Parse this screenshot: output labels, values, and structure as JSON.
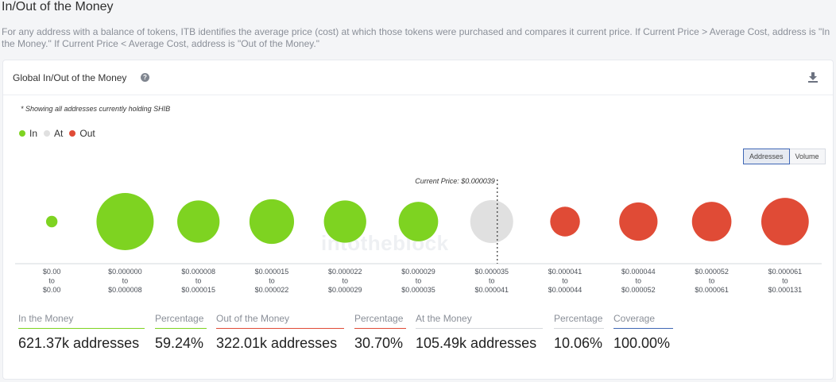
{
  "page": {
    "title": "In/Out of the Money",
    "description": "For any address with a balance of tokens, ITB identifies the average price (cost) at which those tokens were purchased and compares it current price. If Current Price > Average Cost, address is \"In the Money.\" If Current Price < Average Cost, address is \"Out of the Money.\""
  },
  "card": {
    "title": "Global In/Out of the Money",
    "help_icon": "?",
    "note": "* Showing all addresses currently holding SHIB",
    "watermark": "intotheblock"
  },
  "legend": [
    {
      "label": "In",
      "color": "#7ed321"
    },
    {
      "label": "At",
      "color": "#e0e0e0"
    },
    {
      "label": "Out",
      "color": "#e04b36"
    }
  ],
  "toggle": {
    "addresses": "Addresses",
    "volume": "Volume",
    "selected": "Addresses"
  },
  "chart_data": {
    "type": "bubble",
    "current_price_label": "Current Price: $0.000039",
    "current_price_bucket_index": 6,
    "buckets": [
      {
        "range_from": "$0.00",
        "range_to": "$0.00",
        "status": "in",
        "relative_size": 0.2
      },
      {
        "range_from": "$0.000000",
        "range_to": "$0.000008",
        "status": "in",
        "relative_size": 1.0
      },
      {
        "range_from": "$0.000008",
        "range_to": "$0.000015",
        "status": "in",
        "relative_size": 0.74
      },
      {
        "range_from": "$0.000015",
        "range_to": "$0.000022",
        "status": "in",
        "relative_size": 0.78
      },
      {
        "range_from": "$0.000022",
        "range_to": "$0.000029",
        "status": "in",
        "relative_size": 0.74
      },
      {
        "range_from": "$0.000029",
        "range_to": "$0.000035",
        "status": "in",
        "relative_size": 0.69
      },
      {
        "range_from": "$0.000035",
        "range_to": "$0.000041",
        "status": "at",
        "relative_size": 0.75
      },
      {
        "range_from": "$0.000041",
        "range_to": "$0.000044",
        "status": "out",
        "relative_size": 0.52
      },
      {
        "range_from": "$0.000044",
        "range_to": "$0.000052",
        "status": "out",
        "relative_size": 0.67
      },
      {
        "range_from": "$0.000052",
        "range_to": "$0.000061",
        "status": "out",
        "relative_size": 0.69
      },
      {
        "range_from": "$0.000061",
        "range_to": "$0.000131",
        "status": "out",
        "relative_size": 0.83
      }
    ],
    "range_connector": "to",
    "colors": {
      "in": "#7ed321",
      "at": "#e0e0e0",
      "out": "#e04b36"
    }
  },
  "metrics": [
    {
      "label": "In the Money",
      "value": "621.37k addresses",
      "color": "#7ed321"
    },
    {
      "label": "Percentage",
      "value": "59.24%",
      "color": "#7ed321"
    },
    {
      "label": "Out of the Money",
      "value": "322.01k addresses",
      "color": "#e04b36"
    },
    {
      "label": "Percentage",
      "value": "30.70%",
      "color": "#e04b36"
    },
    {
      "label": "At the Money",
      "value": "105.49k addresses",
      "color": "#d6d8dc"
    },
    {
      "label": "Percentage",
      "value": "10.06%",
      "color": "#d6d8dc"
    },
    {
      "label": "Coverage",
      "value": "100.00%",
      "color": "#3f67b5"
    }
  ]
}
